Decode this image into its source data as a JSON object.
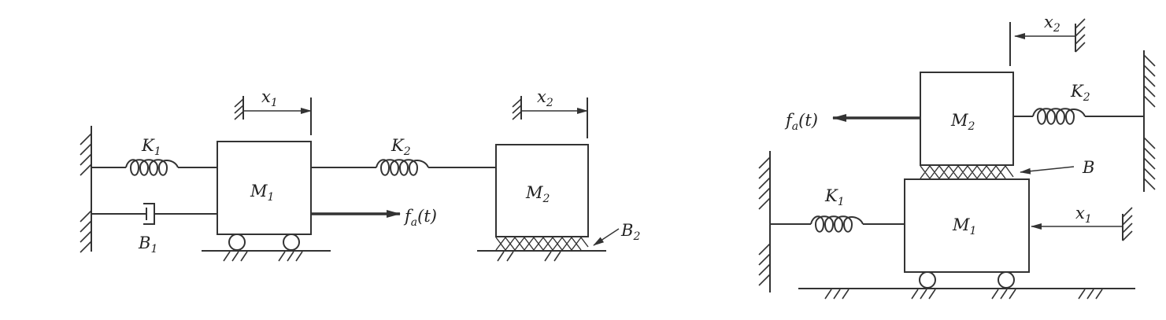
{
  "figure_a": {
    "spring_k1": {
      "sym": "K",
      "sub": "1"
    },
    "damper_b1": {
      "sym": "B",
      "sub": "1"
    },
    "mass_m1": {
      "sym": "M",
      "sub": "1"
    },
    "spring_k2": {
      "sym": "K",
      "sub": "2"
    },
    "mass_m2": {
      "sym": "M",
      "sub": "2"
    },
    "disp_x1": {
      "sym": "x",
      "sub": "1"
    },
    "disp_x2": {
      "sym": "x",
      "sub": "2"
    },
    "force": {
      "sym": "f",
      "sub": "a",
      "arg": "(t)"
    },
    "friction_b2": {
      "sym": "B",
      "sub": "2"
    }
  },
  "figure_b": {
    "mass_m2": {
      "sym": "M",
      "sub": "2"
    },
    "mass_m1": {
      "sym": "M",
      "sub": "1"
    },
    "spring_k2": {
      "sym": "K",
      "sub": "2"
    },
    "spring_k1": {
      "sym": "K",
      "sub": "1"
    },
    "disp_x2": {
      "sym": "x",
      "sub": "2"
    },
    "disp_x1": {
      "sym": "x",
      "sub": "1"
    },
    "force": {
      "sym": "f",
      "sub": "a",
      "arg": "(t)"
    },
    "friction_b": {
      "sym": "B"
    }
  }
}
